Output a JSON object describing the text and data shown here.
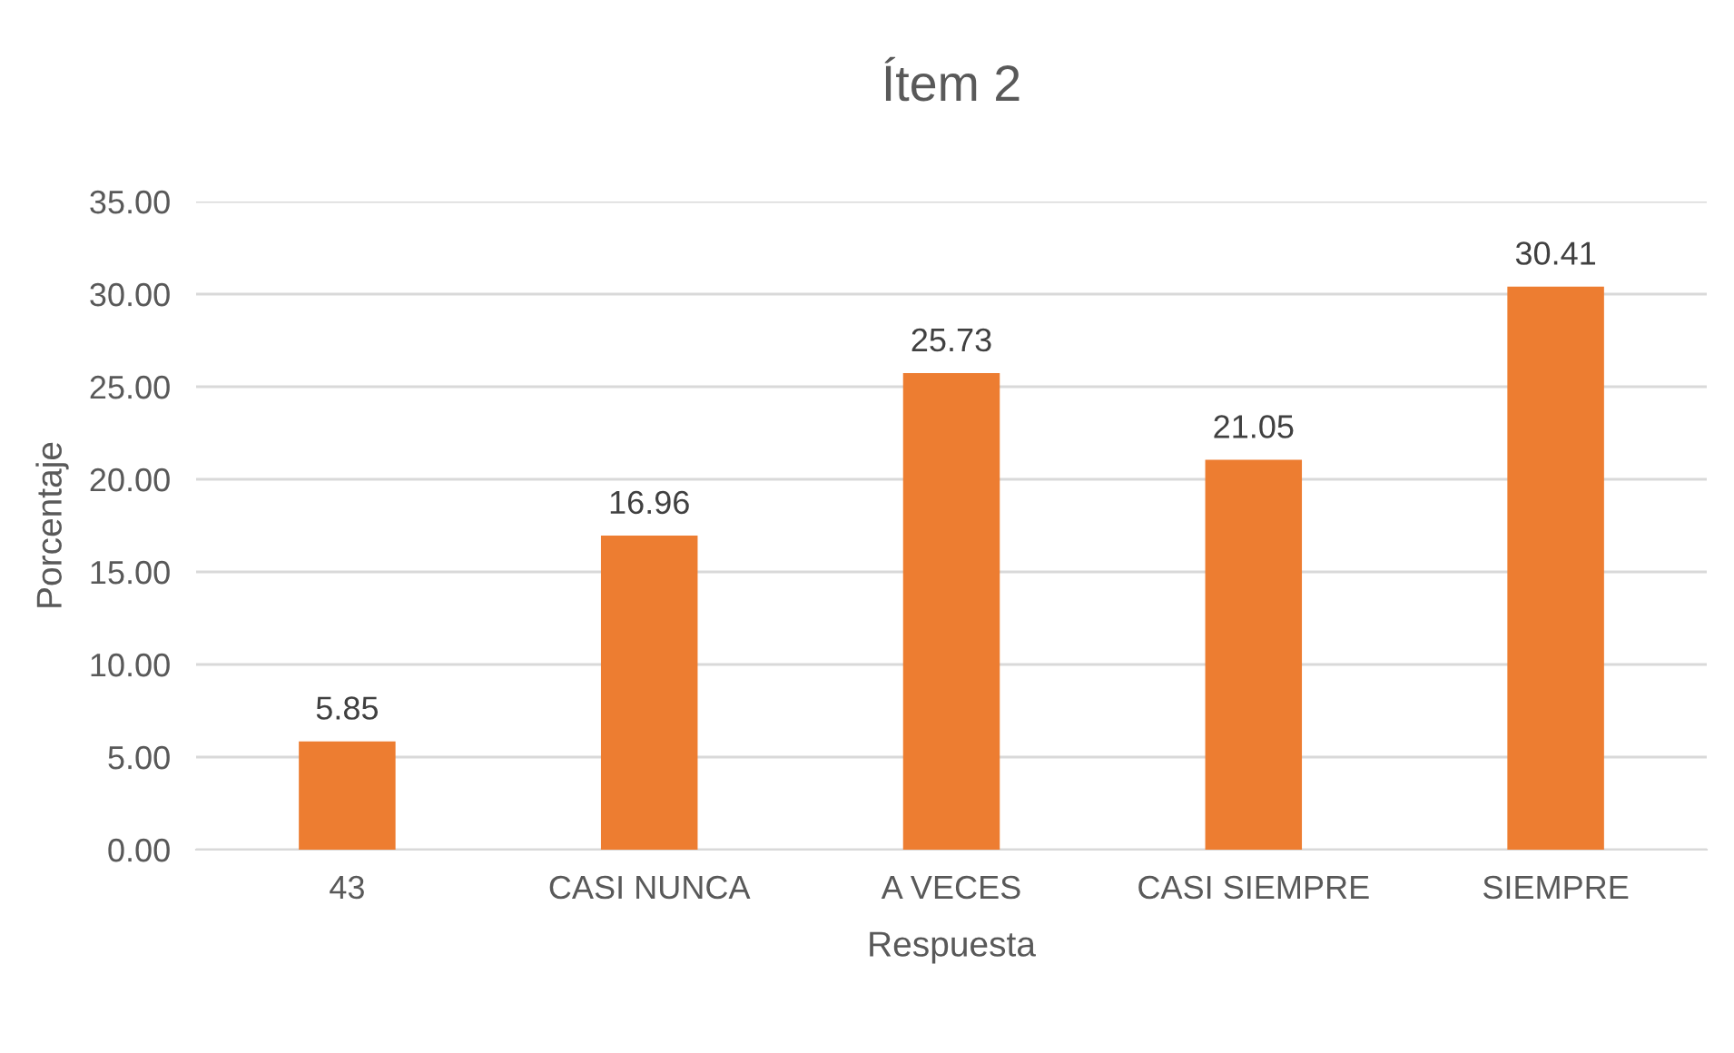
{
  "chart_data": {
    "type": "bar",
    "title": "Ítem 2",
    "xlabel": "Respuesta",
    "ylabel": "Porcentaje",
    "categories": [
      "43",
      "CASI NUNCA",
      "A VECES",
      "CASI SIEMPRE",
      "SIEMPRE"
    ],
    "values": [
      5.85,
      16.96,
      25.73,
      21.05,
      30.41
    ],
    "color": "#ed7d31",
    "ylim": [
      0,
      35
    ],
    "yticks": [
      {
        "value": 0,
        "label": "0.00"
      },
      {
        "value": 5,
        "label": "5.00"
      },
      {
        "value": 10,
        "label": "10.00"
      },
      {
        "value": 15,
        "label": "15.00"
      },
      {
        "value": 20,
        "label": "20.00"
      },
      {
        "value": 25,
        "label": "25.00"
      },
      {
        "value": 30,
        "label": "30.00"
      },
      {
        "value": 35,
        "label": "35.00"
      }
    ],
    "grid": "y",
    "data_labels": true
  }
}
